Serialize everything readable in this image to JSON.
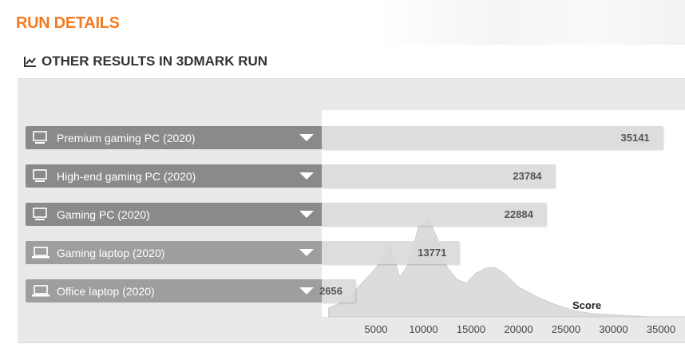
{
  "page": {
    "title": "RUN DETAILS"
  },
  "section": {
    "title": "OTHER RESULTS IN 3DMARK RUN",
    "icon": "line-chart-icon"
  },
  "results": [
    {
      "label": "Premium gaming PC (2020)",
      "score": "35141",
      "score_value": 35141,
      "device": "desktop-icon"
    },
    {
      "label": "High-end gaming PC (2020)",
      "score": "23784",
      "score_value": 23784,
      "device": "desktop-icon"
    },
    {
      "label": "Gaming PC (2020)",
      "score": "22884",
      "score_value": 22884,
      "device": "desktop-icon"
    },
    {
      "label": "Gaming laptop (2020)",
      "score": "13771",
      "score_value": 13771,
      "device": "laptop-icon"
    },
    {
      "label": "Office laptop (2020)",
      "score": "2656",
      "score_value": 2656,
      "device": "laptop-icon"
    }
  ],
  "chart_data": {
    "type": "area",
    "xlabel": "Score",
    "ticks": [
      "5000",
      "10000",
      "15000",
      "20000",
      "25000",
      "30000",
      "35000"
    ],
    "x": [
      0,
      500,
      1500,
      2500,
      3500,
      4500,
      5500,
      6500,
      7500,
      8500,
      9500,
      10500,
      11500,
      12500,
      13500,
      14500,
      15500,
      16500,
      17500,
      18500,
      20000,
      22000,
      24000,
      26000,
      28000,
      30000,
      32000,
      34000,
      36000
    ],
    "y": [
      0.09,
      0.11,
      0.15,
      0.24,
      0.34,
      0.44,
      0.56,
      0.72,
      0.4,
      0.55,
      0.92,
      1.0,
      0.78,
      0.5,
      0.38,
      0.34,
      0.44,
      0.49,
      0.5,
      0.44,
      0.3,
      0.2,
      0.12,
      0.06,
      0.03,
      0.02,
      0.01,
      0.0,
      0.0
    ],
    "xlim": [
      0,
      37500
    ],
    "colors": {
      "fill": "#dcdcdc",
      "stroke": "#cfcfcf"
    }
  }
}
